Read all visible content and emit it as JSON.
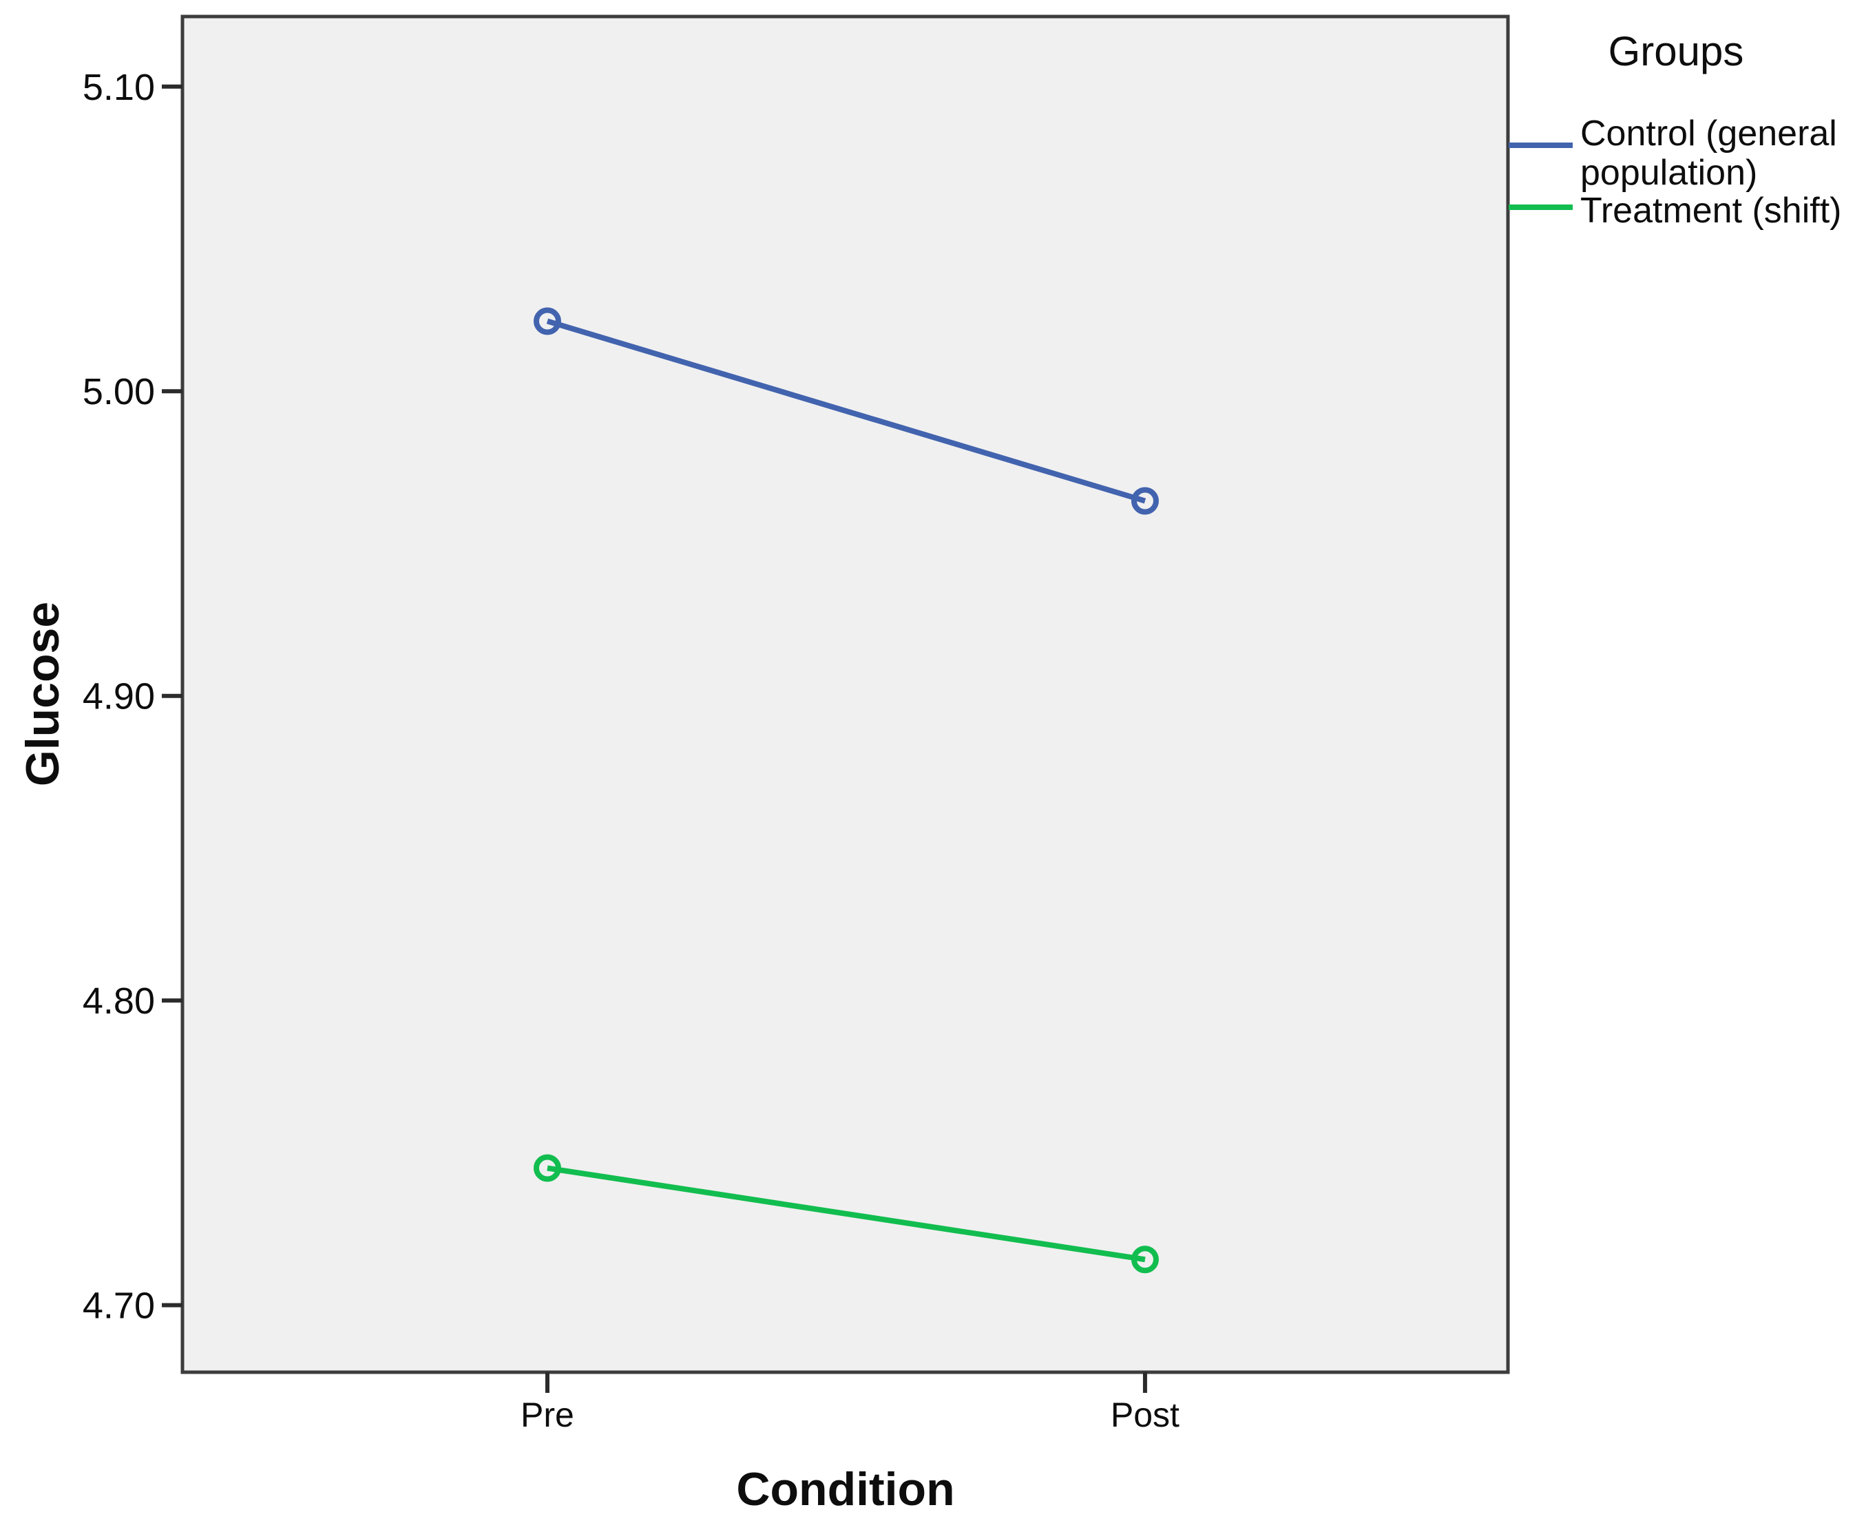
{
  "chart_data": {
    "type": "line",
    "title": "",
    "xlabel": "Condition",
    "ylabel": "Glucose",
    "categories": [
      "Pre",
      "Post"
    ],
    "series": [
      {
        "name": "Control (general population)",
        "color": "#4263ae",
        "values": [
          5.023,
          4.964
        ]
      },
      {
        "name": "Treatment (shift)",
        "color": "#12bd4f",
        "values": [
          4.745,
          4.715
        ]
      }
    ],
    "ylim": [
      4.678,
      5.123
    ],
    "yticks": [
      {
        "value": 5.1,
        "label": "5.10"
      },
      {
        "value": 5.0,
        "label": "5.00"
      },
      {
        "value": 4.9,
        "label": "4.90"
      },
      {
        "value": 4.8,
        "label": "4.80"
      },
      {
        "value": 4.7,
        "label": "4.70"
      }
    ],
    "legend": {
      "title": "Groups",
      "position": "right"
    },
    "grid": false,
    "marker": "open-circle",
    "plot_background": "#f0f0f0",
    "border_color": "#3d3d3d",
    "tick_color": "#2b2b2b",
    "text_color": "#0d0d0d"
  }
}
